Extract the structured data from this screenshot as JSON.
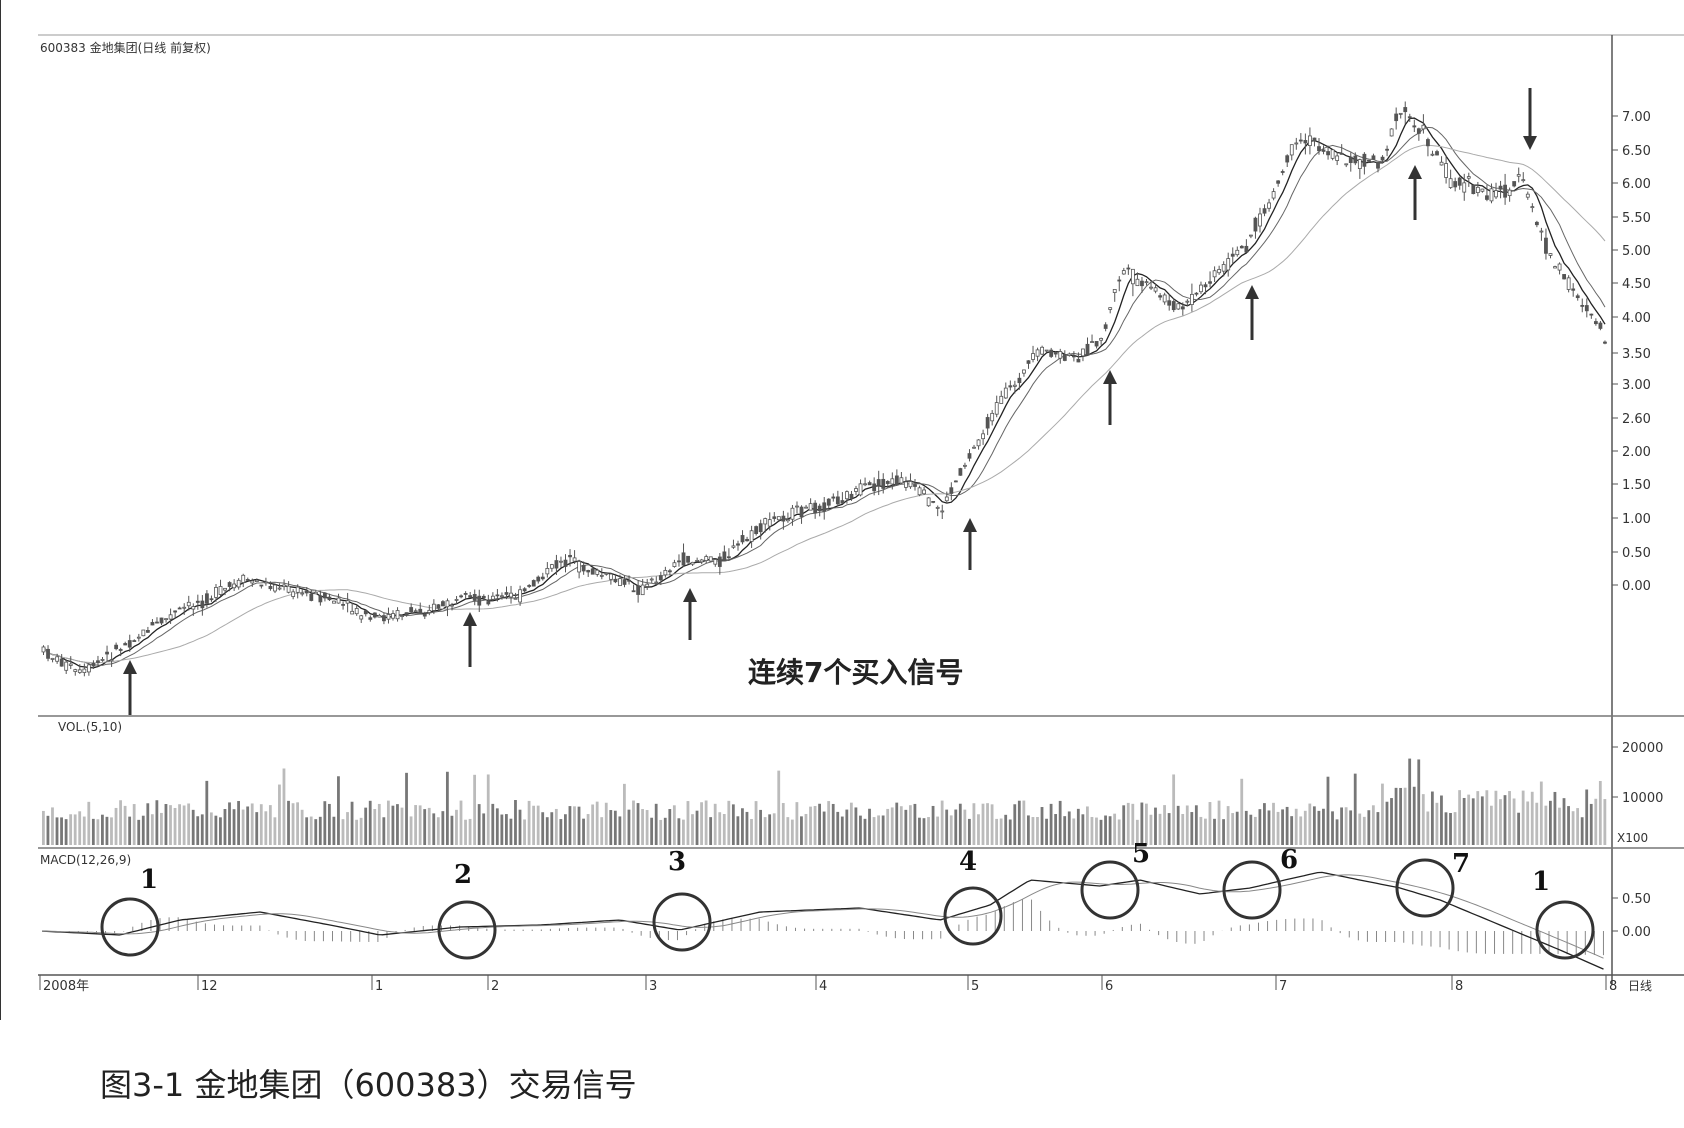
{
  "chart_title": "600383 金地集团(日线 前复权)",
  "annotation": "连续7个买入信号",
  "caption": "图3-1 金地集团（600383）交易信号",
  "vol_label": "VOL.(5,10)",
  "macd_label": "MACD(12,26,9)",
  "vol_unit": "X100",
  "period_label": "日线",
  "colors": {
    "candle": "#555555",
    "ma_dark": "#222222",
    "ma_light": "#aaaaaa",
    "grid": "#999999"
  },
  "chart_data": {
    "type": "candlestick",
    "price_ticks": [
      "7.00",
      "6.50",
      "6.00",
      "5.50",
      "5.00",
      "4.50",
      "4.00",
      "3.50",
      "3.00",
      "2.60",
      "2.00",
      "1.50",
      "1.00",
      "0.50",
      "0.00"
    ],
    "vol_ticks": [
      "20000",
      "10000"
    ],
    "macd_ticks": [
      "0.50",
      "0.00"
    ],
    "x_labels": [
      "2008年",
      "12",
      "1",
      "2",
      "3",
      "4",
      "5",
      "6",
      "7",
      "8",
      "8"
    ],
    "buy_signal_count": 7,
    "macd_markers": [
      "1",
      "2",
      "3",
      "4",
      "5",
      "6",
      "7",
      "1"
    ]
  }
}
